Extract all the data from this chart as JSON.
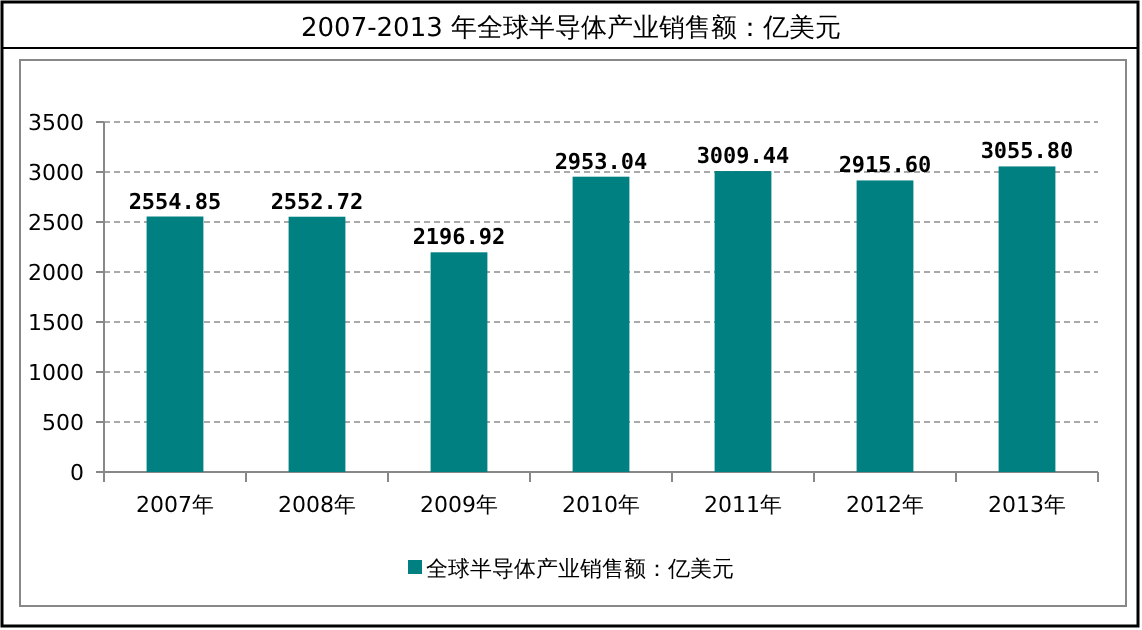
{
  "chart_data": {
    "type": "bar",
    "title": "2007-2013 年全球半导体产业销售额：亿美元",
    "categories": [
      "2007年",
      "2008年",
      "2009年",
      "2010年",
      "2011年",
      "2012年",
      "2013年"
    ],
    "series": [
      {
        "name": "全球半导体产业销售额：亿美元",
        "color": "#008080",
        "values": [
          2554.85,
          2552.72,
          2196.92,
          2953.04,
          3009.44,
          2915.6,
          3055.8
        ],
        "value_labels": [
          "2554.85",
          "2552.72",
          "2196.92",
          "2953.04",
          "3009.44",
          "2915.60",
          "3055.80"
        ]
      }
    ],
    "ylim": [
      0,
      3500
    ],
    "yticks": [
      0,
      500,
      1000,
      1500,
      2000,
      2500,
      3000,
      3500
    ],
    "grid": "y",
    "legend": "bottom"
  }
}
